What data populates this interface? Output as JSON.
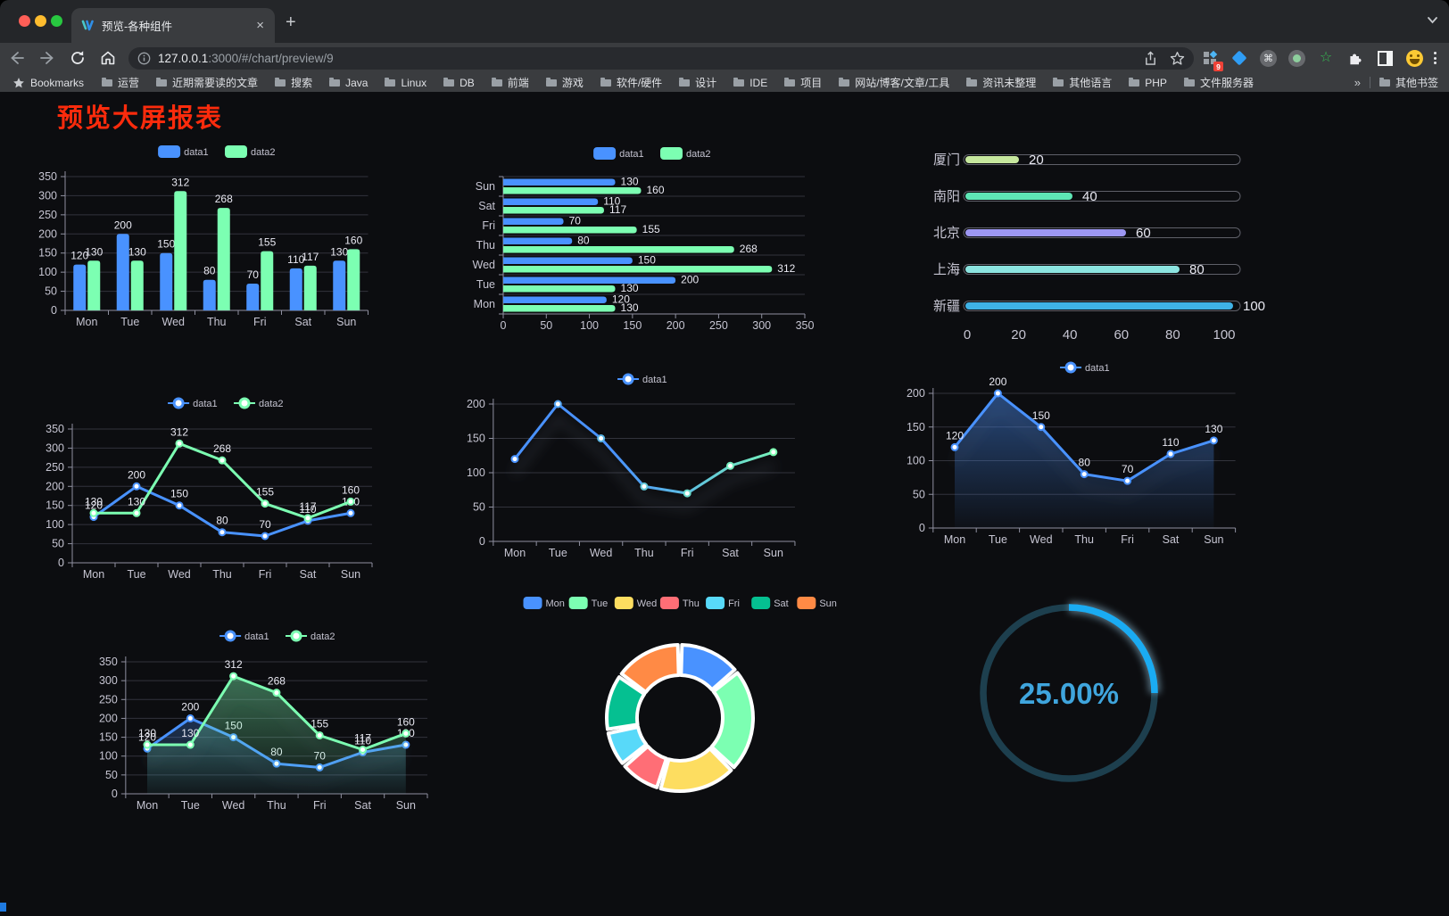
{
  "browser": {
    "tab_title": "预览-各种组件",
    "url_host": "127.0.0.1",
    "url_rest": ":3000/#/chart/preview/9",
    "bookmarks_label": "Bookmarks",
    "bookmarks": [
      "运营",
      "近期需要读的文章",
      "搜索",
      "Java",
      "Linux",
      "DB",
      "前端",
      "游戏",
      "软件/硬件",
      "设计",
      "IDE",
      "项目",
      "网站/博客/文章/工具",
      "资讯未整理",
      "其他语言",
      "PHP",
      "文件服务器"
    ],
    "bookmarks_overflow": "»",
    "other_bookmarks": "其他书签",
    "new_tab_glyph": "+",
    "close_glyph": "×",
    "ext_badge": "9",
    "cmd_glyph": "⌘",
    "star_glyph": "☆"
  },
  "page": {
    "title": "预览大屏报表"
  },
  "palette": {
    "page_bg": "#0c0d10",
    "axis": "#8f90a0",
    "grid": "#32333c",
    "axis_label": "#c6c5d2",
    "value_label": "#e9e9f2",
    "legend_label": "#c4c3d0",
    "blue": "#4992ff",
    "green": "#7cffb2",
    "track_border": "#5f6069",
    "gauge_track": "#1d3f4e",
    "gauge_arc": "#1aabf2",
    "gauge_text": "#3fa5dd",
    "title_red": "#fb2b0c"
  },
  "chart_data": {
    "bar": {
      "type": "bar",
      "categories": [
        "Mon",
        "Tue",
        "Wed",
        "Thu",
        "Fri",
        "Sat",
        "Sun"
      ],
      "series": [
        {
          "name": "data1",
          "color": "#4992ff",
          "values": [
            120,
            200,
            150,
            80,
            70,
            110,
            130
          ]
        },
        {
          "name": "data2",
          "color": "#7cffb2",
          "values": [
            130,
            130,
            312,
            268,
            155,
            117,
            160
          ]
        }
      ],
      "ylim": [
        0,
        350
      ],
      "ystep": 50,
      "grid": true,
      "legend_position": "top"
    },
    "hbar": {
      "type": "bar",
      "orientation": "horizontal",
      "categories_top_to_bottom": [
        "Sun",
        "Sat",
        "Fri",
        "Thu",
        "Wed",
        "Tue",
        "Mon"
      ],
      "series": [
        {
          "name": "data1",
          "color": "#4992ff",
          "values": [
            120,
            200,
            150,
            80,
            70,
            110,
            130
          ]
        },
        {
          "name": "data2",
          "color": "#7cffb2",
          "values": [
            130,
            130,
            312,
            268,
            155,
            117,
            160
          ]
        }
      ],
      "value_order": [
        "Mon",
        "Tue",
        "Wed",
        "Thu",
        "Fri",
        "Sat",
        "Sun"
      ],
      "xlim": [
        0,
        350
      ],
      "xstep": 50
    },
    "progress": {
      "type": "bar",
      "orientation": "horizontal",
      "items": [
        {
          "label": "厦门",
          "value": 20,
          "color": "#c7e89e"
        },
        {
          "label": "南阳",
          "value": 40,
          "color": "#5ee6b5"
        },
        {
          "label": "北京",
          "value": 60,
          "color": "#9d97f3"
        },
        {
          "label": "上海",
          "value": 80,
          "color": "#8ce4e0"
        },
        {
          "label": "新疆",
          "value": 100,
          "color": "#3fb2e6"
        }
      ],
      "xticks": [
        0,
        20,
        40,
        60,
        80,
        100
      ],
      "xlim": [
        0,
        100
      ]
    },
    "line_multi": {
      "type": "line",
      "categories": [
        "Mon",
        "Tue",
        "Wed",
        "Thu",
        "Fri",
        "Sat",
        "Sun"
      ],
      "series": [
        {
          "name": "data1",
          "color": "#4992ff",
          "values": [
            120,
            200,
            150,
            80,
            70,
            110,
            130
          ]
        },
        {
          "name": "data2",
          "color": "#7cffb2",
          "values": [
            130,
            130,
            312,
            268,
            155,
            117,
            160
          ]
        }
      ],
      "ylim": [
        0,
        350
      ],
      "ystep": 50,
      "point_labels": true
    },
    "line_gradient": {
      "type": "line",
      "categories": [
        "Mon",
        "Tue",
        "Wed",
        "Thu",
        "Fri",
        "Sat",
        "Sun"
      ],
      "series": [
        {
          "name": "data1",
          "gradient": [
            "#4992ff",
            "#7cffb2"
          ],
          "values": [
            120,
            200,
            150,
            80,
            70,
            110,
            130
          ]
        }
      ],
      "ylim": [
        0,
        200
      ],
      "ystep": 50,
      "point_labels": false
    },
    "area_single": {
      "type": "area",
      "categories": [
        "Mon",
        "Tue",
        "Wed",
        "Thu",
        "Fri",
        "Sat",
        "Sun"
      ],
      "series": [
        {
          "name": "data1",
          "color": "#4992ff",
          "values": [
            120,
            200,
            150,
            80,
            70,
            110,
            130
          ]
        }
      ],
      "ylim": [
        0,
        200
      ],
      "ystep": 50,
      "point_labels": true
    },
    "area_multi": {
      "type": "area",
      "categories": [
        "Mon",
        "Tue",
        "Wed",
        "Thu",
        "Fri",
        "Sat",
        "Sun"
      ],
      "series": [
        {
          "name": "data1",
          "color": "#4992ff",
          "values": [
            120,
            200,
            150,
            80,
            70,
            110,
            130
          ]
        },
        {
          "name": "data2",
          "color": "#7cffb2",
          "values": [
            130,
            130,
            312,
            268,
            155,
            117,
            160
          ]
        }
      ],
      "ylim": [
        0,
        350
      ],
      "ystep": 50,
      "point_labels": true
    },
    "pie": {
      "type": "pie",
      "style": "doughnut-rose",
      "categories": [
        "Mon",
        "Tue",
        "Wed",
        "Thu",
        "Fri",
        "Sat",
        "Sun"
      ],
      "values": [
        120,
        200,
        150,
        80,
        70,
        110,
        130
      ],
      "colors": [
        "#4992ff",
        "#7cffb2",
        "#fddd60",
        "#ff6e76",
        "#58d9f9",
        "#05c091",
        "#ff8a45"
      ],
      "legend_position": "top"
    },
    "gauge": {
      "type": "gauge",
      "value": 25,
      "label": "25.00%"
    }
  }
}
